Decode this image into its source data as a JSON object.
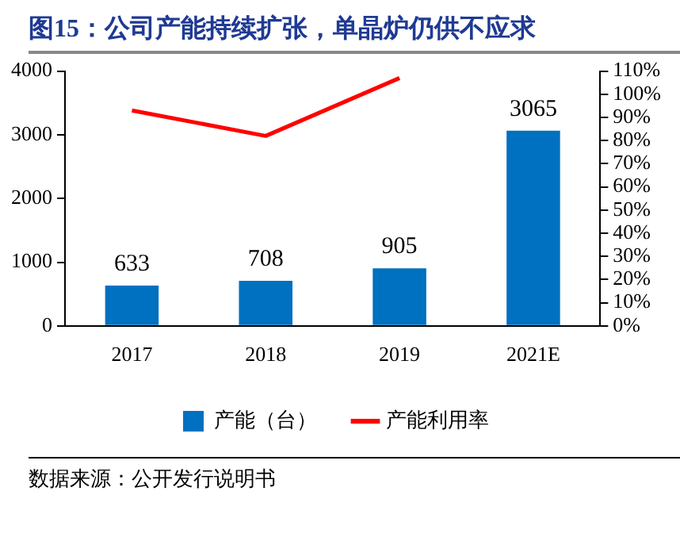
{
  "chart_data": {
    "type": "bar",
    "title": "图15：公司产能持续扩张，单晶炉仍供不应求",
    "categories": [
      "2017",
      "2018",
      "2019",
      "2021E"
    ],
    "series": [
      {
        "name": "产能（台）",
        "color": "#0070c0",
        "values": [
          633,
          708,
          905,
          3065
        ],
        "value_labels": [
          "633",
          "708",
          "905",
          "3065"
        ]
      },
      {
        "name": "产能利用率",
        "type": "line",
        "axis": "y2",
        "color": "#ff0000",
        "values": [
          93,
          82,
          107,
          null
        ]
      }
    ],
    "ylim": [
      0,
      4000
    ],
    "yticks": [
      0,
      1000,
      2000,
      3000,
      4000
    ],
    "y2lim": [
      0,
      110
    ],
    "y2ticks": [
      {
        "value": 0,
        "label": "0%"
      },
      {
        "value": 10,
        "label": "10%"
      },
      {
        "value": 20,
        "label": "20%"
      },
      {
        "value": 30,
        "label": "30%"
      },
      {
        "value": 40,
        "label": "40%"
      },
      {
        "value": 50,
        "label": "50%"
      },
      {
        "value": 60,
        "label": "60%"
      },
      {
        "value": 70,
        "label": "70%"
      },
      {
        "value": 80,
        "label": "80%"
      },
      {
        "value": 90,
        "label": "90%"
      },
      {
        "value": 100,
        "label": "100%"
      },
      {
        "value": 110,
        "label": "110%"
      }
    ],
    "grid": false,
    "legend": "bottom",
    "marker": "none",
    "annotations": [
      "数据来源：公开发行说明书"
    ]
  }
}
